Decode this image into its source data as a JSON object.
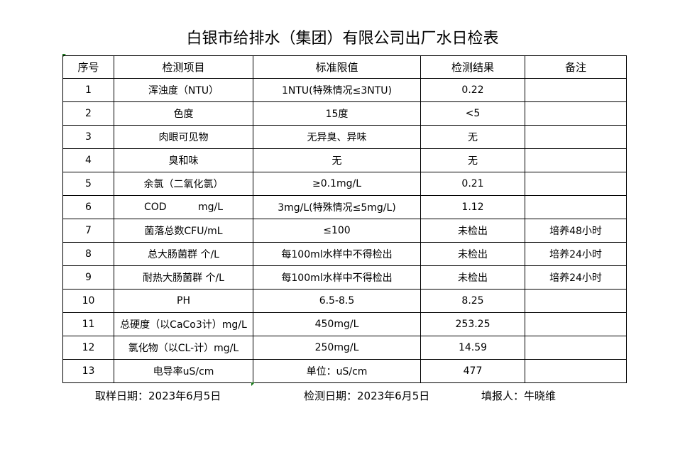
{
  "title": "白银市给排水（集团）有限公司出厂水日检表",
  "headers": [
    "序号",
    "检测项目",
    "标准限值",
    "检测结果",
    "备注"
  ],
  "rows": [
    [
      "1",
      "浑浊度（NTU）",
      "1NTU(特殊情况≤3NTU)",
      "0.22",
      ""
    ],
    [
      "2",
      "色度",
      "15度",
      "<5",
      ""
    ],
    [
      "3",
      "肉眼可见物",
      "无异臭、异味",
      "无",
      ""
    ],
    [
      "4",
      "臭和味",
      "无",
      "无",
      ""
    ],
    [
      "5",
      "余氯（二氧化氯）",
      "≥0.1mg/L",
      "0.21",
      ""
    ],
    [
      "6",
      "COD          mg/L",
      "3mg/L(特殊情况≤5mg/L)",
      "1.12",
      ""
    ],
    [
      "7",
      "菌落总数CFU/mL",
      "≤100",
      "未检出",
      "培养48小时"
    ],
    [
      "8",
      "总大肠菌群 个/L",
      "每100ml水样中不得检出",
      "未检出",
      "培养24小时"
    ],
    [
      "9",
      "耐热大肠菌群 个/L",
      "每100ml水样中不得检出",
      "未检出",
      "培养24小时"
    ],
    [
      "10",
      "PH",
      "6.5-8.5",
      "8.25",
      ""
    ],
    [
      "11",
      "总硬度（以CaCo3计）mg/L",
      "450mg/L",
      "253.25",
      ""
    ],
    [
      "12",
      "氯化物（以CL-计）mg/L",
      "250mg/L",
      "14.59",
      ""
    ],
    [
      "13",
      "电导率uS/cm",
      "单位：uS/cm",
      "477",
      ""
    ]
  ],
  "footer": {
    "sampling_date": "取样日期：2023年6月5日",
    "test_date": "检测日期：2023年6月5日",
    "reporter": "填报人：牛晓维"
  }
}
